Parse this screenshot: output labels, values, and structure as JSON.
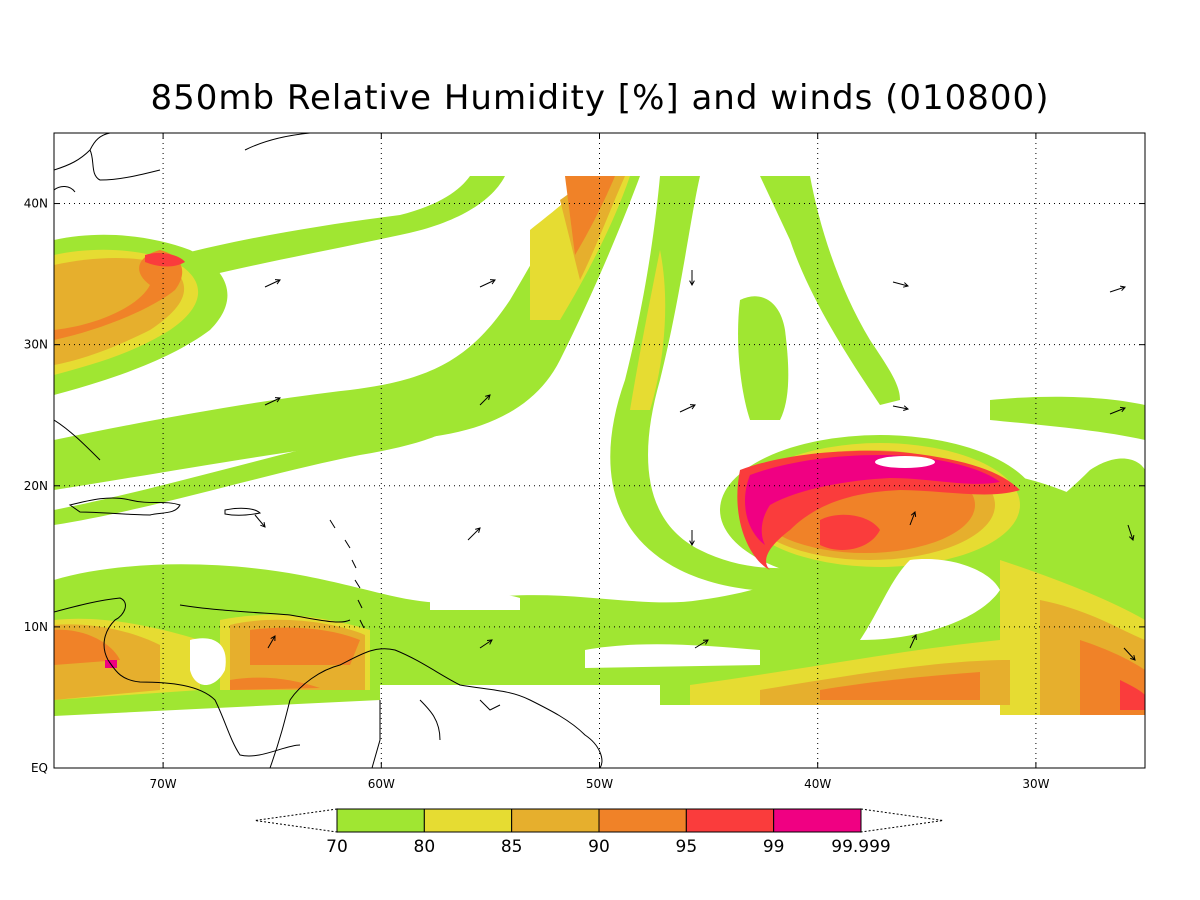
{
  "title": "850mb Relative Humidity [%] and winds (010800)",
  "map": {
    "lon_range": [
      -75,
      -25
    ],
    "lat_range": [
      0,
      45
    ],
    "lon_ticks": [
      {
        "lon": -70,
        "label": "70W"
      },
      {
        "lon": -60,
        "label": "60W"
      },
      {
        "lon": -50,
        "label": "50W"
      },
      {
        "lon": -40,
        "label": "40W"
      },
      {
        "lon": -30,
        "label": "30W"
      }
    ],
    "lat_ticks": [
      {
        "lat": 0,
        "label": "EQ"
      },
      {
        "lat": 10,
        "label": "10N"
      },
      {
        "lat": 20,
        "label": "20N"
      },
      {
        "lat": 30,
        "label": "30N"
      },
      {
        "lat": 40,
        "label": "40N"
      }
    ],
    "grid": true
  },
  "colorbar": {
    "levels": [
      "70",
      "80",
      "85",
      "90",
      "95",
      "99",
      "99.999"
    ],
    "colors": [
      "#a0e632",
      "#e6dc32",
      "#e6af2d",
      "#f08228",
      "#fa3c3c",
      "#f00082"
    ]
  },
  "land_color": "#000000",
  "grid_color": "#000000"
}
